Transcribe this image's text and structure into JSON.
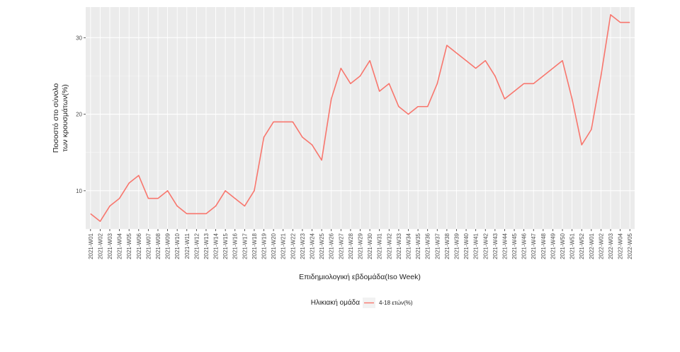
{
  "chart_data": {
    "type": "line",
    "xlabel": "Επιδημιολογική εβδομάδα(Iso Week)",
    "ylabel_lines": [
      "Ποσοστό στο σύνολο",
      "των κρουσμάτων(%)"
    ],
    "legend_title": "Ηλικιακή ομάδα",
    "legend_position": "bottom",
    "grid": true,
    "ylim": [
      5,
      34
    ],
    "yticks": [
      10,
      20,
      30
    ],
    "x": [
      "2021-W01",
      "2021-W02",
      "2021-W03",
      "2021-W04",
      "2021-W05",
      "2021-W06",
      "2021-W07",
      "2021-W08",
      "2021-W09",
      "2021-W10",
      "2021-W11",
      "2021-W12",
      "2021-W13",
      "2021-W14",
      "2021-W15",
      "2021-W16",
      "2021-W17",
      "2021-W18",
      "2021-W19",
      "2021-W20",
      "2021-W21",
      "2021-W22",
      "2021-W23",
      "2021-W24",
      "2021-W25",
      "2021-W26",
      "2021-W27",
      "2021-W28",
      "2021-W29",
      "2021-W30",
      "2021-W31",
      "2021-W32",
      "2021-W33",
      "2021-W34",
      "2021-W35",
      "2021-W36",
      "2021-W37",
      "2021-W38",
      "2021-W39",
      "2021-W40",
      "2021-W41",
      "2021-W42",
      "2021-W43",
      "2021-W44",
      "2021-W45",
      "2021-W46",
      "2021-W47",
      "2021-W48",
      "2021-W49",
      "2021-W50",
      "2021-W51",
      "2021-W52",
      "2022-W01",
      "2022-W02",
      "2022-W03",
      "2022-W04",
      "2022-W05"
    ],
    "series": [
      {
        "name": "4-18 ετών(%)",
        "color": "#f8766d",
        "values": [
          7,
          6,
          8,
          9,
          11,
          12,
          9,
          9,
          10,
          8,
          7,
          7,
          7,
          8,
          10,
          9,
          8,
          10,
          17,
          19,
          19,
          19,
          17,
          16,
          14,
          22,
          26,
          24,
          25,
          27,
          23,
          24,
          21,
          20,
          21,
          21,
          24,
          29,
          28,
          27,
          26,
          27,
          25,
          22,
          23,
          24,
          24,
          25,
          26,
          27,
          22,
          16,
          18,
          25,
          33,
          32,
          32
        ]
      }
    ]
  },
  "colors": {
    "panel": "#ebebeb",
    "grid_major": "#ffffff",
    "grid_minor": "#f5f5f5"
  }
}
